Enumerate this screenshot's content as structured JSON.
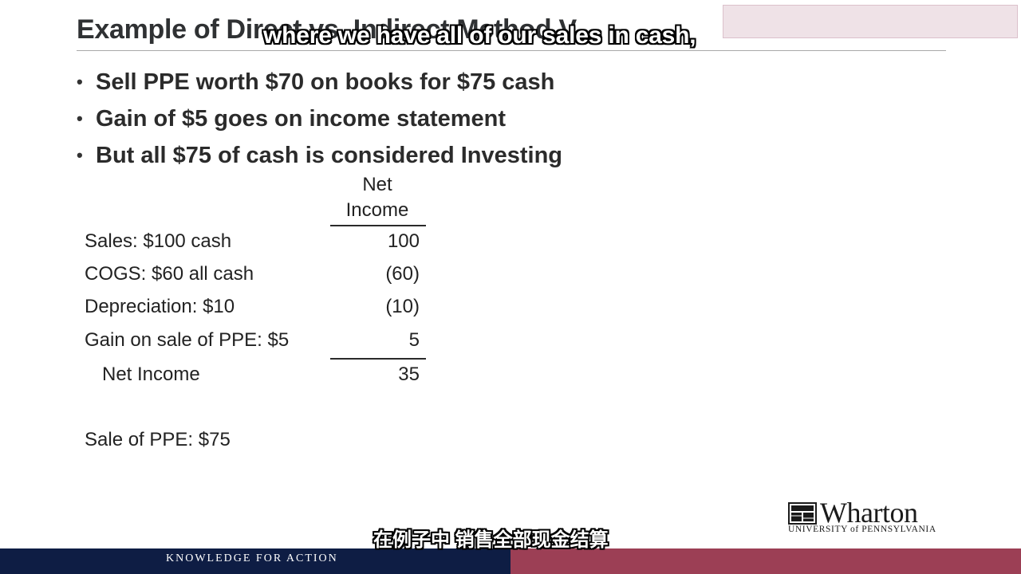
{
  "slide": {
    "title": "Example of Direct vs. Indirect Method V",
    "bullets": [
      "Sell PPE worth $70 on books for $75 cash",
      "Gain of $5 goes on income statement",
      "But all $75 of cash is considered Investing"
    ],
    "table": {
      "header_line1": "Net",
      "header_line2": "Income",
      "rows": [
        {
          "label": "Sales: $100 cash",
          "value": "100"
        },
        {
          "label": "COGS: $60 all cash",
          "value": "(60)"
        },
        {
          "label": "Depreciation: $10",
          "value": "(10)"
        },
        {
          "label": "Gain on sale of PPE: $5",
          "value": "5"
        }
      ],
      "total": {
        "label": "Net Income",
        "value": "35"
      }
    },
    "sale_of_ppe": "Sale of PPE: $75"
  },
  "logo": {
    "name": "Wharton",
    "subtitle": "UNIVERSITY of PENNSYLVANIA"
  },
  "footer": {
    "tagline": "KNOWLEDGE FOR ACTION"
  },
  "captions": {
    "english": "where we have all of our sales in cash,",
    "chinese": "在例子中 销售全部现金结算"
  },
  "colors": {
    "footer_navy": "#0e1d44",
    "footer_maroon": "#9c3f55"
  },
  "icons": {
    "logo_mark": "wharton-shield-icon",
    "bullet": "bullet-dot-icon"
  }
}
